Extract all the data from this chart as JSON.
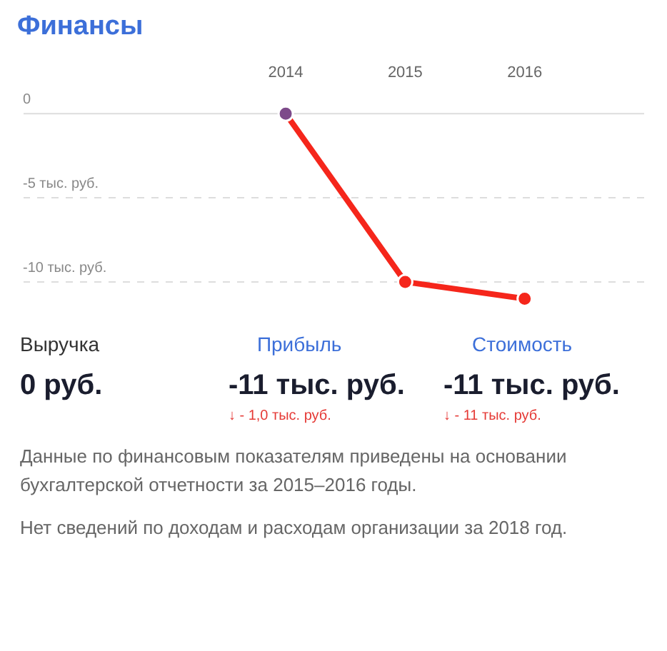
{
  "chart_data": [
    {
      "type": "line",
      "title": "Финансы",
      "x": [
        2014,
        2015,
        2016
      ],
      "xlim": [
        2011.8,
        2017
      ],
      "xticks": [
        2014,
        2015,
        2016
      ],
      "ylim": [
        -12,
        1.5
      ],
      "yticks": [
        0,
        {
          "value": -5,
          "label": "-5 тыс. руб."
        },
        {
          "value": -10,
          "label": "-10 тыс. руб."
        }
      ],
      "grid": "y",
      "marker": "circle",
      "series": [
        {
          "color": "#f5261b",
          "colors": [
            "#7d4a8a",
            "#f5261b",
            "#f5261b"
          ],
          "values": [
            0,
            -10,
            -11
          ]
        }
      ]
    },
    {
      "type": "other",
      "categories": [
        "Выручка",
        "Прибыль",
        "Стоимость"
      ],
      "value_labels": [
        "0 руб.",
        "-11 тыс. руб.",
        "-11 тыс. руб."
      ],
      "annotations": [
        {
          "text": "↓ - 1,0 тыс. руб.",
          "x": "Прибыль"
        },
        {
          "text": "↓ - 11 тыс. руб.",
          "x": "Стоимость"
        },
        "Данные по финансовым показателям приведены на основании бухгалтерской отчетности за 2015–2016 годы.",
        "Нет сведений по доходам и расходам организации за 2018 год."
      ]
    }
  ]
}
